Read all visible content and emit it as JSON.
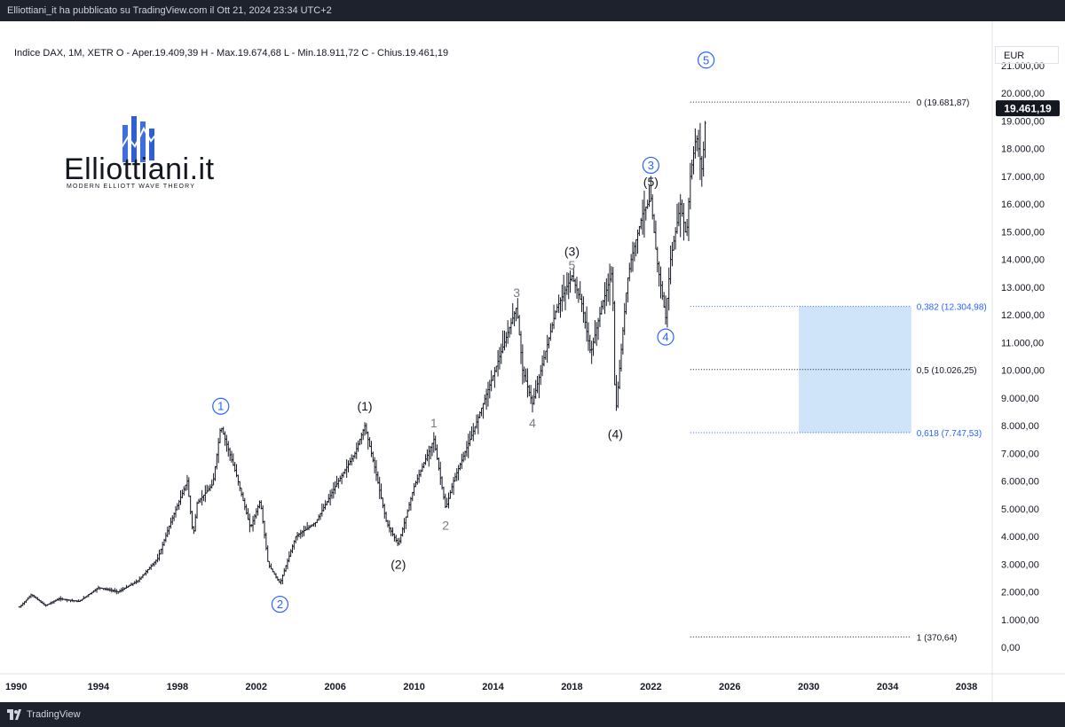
{
  "header": {
    "publisher_line": "Elliottiani_it ha pubblicato su TradingView.com il Ott 21, 2024 23:34 UTC+2"
  },
  "legend": {
    "text": "Indice DAX, 1M, XETR  O - Aper.19.409,39  H - Max.19.674,68  L - Min.18.911,72  C - Chius.19.461,19"
  },
  "price_axis": {
    "currency": "EUR",
    "last_price_label": "19.461,19"
  },
  "brand": {
    "name": "Elliottiani.it",
    "tagline": "MODERN ELLIOTT WAVE THEORY"
  },
  "footer": {
    "brand": "TradingView"
  },
  "colors": {
    "fib_zone": "#cfe3f9",
    "fib_line": "#2962ff",
    "circle_label": "#2962ff",
    "candle": "#131722",
    "last_price_bg": "#131722"
  },
  "chart_data": {
    "type": "ohlc",
    "instrument": "Indice DAX",
    "timeframe": "1M",
    "y_axis": {
      "min": -500,
      "max": 22500,
      "ticks": [
        0,
        1000,
        2000,
        3000,
        4000,
        5000,
        6000,
        7000,
        8000,
        9000,
        10000,
        11000,
        12000,
        13000,
        14000,
        15000,
        16000,
        17000,
        18000,
        19000,
        20000,
        21000
      ],
      "tick_labels": [
        "0,00",
        "1.000,00",
        "2.000,00",
        "3.000,00",
        "4.000,00",
        "5.000,00",
        "6.000,00",
        "7.000,00",
        "8.000,00",
        "9.000,00",
        "10.000,00",
        "11.000,00",
        "12.000,00",
        "13.000,00",
        "14.000,00",
        "15.000,00",
        "16.000,00",
        "17.000,00",
        "18.000,00",
        "19.000,00",
        "20.000,00",
        "21.000,00"
      ]
    },
    "x_axis": {
      "ticks": [
        1990,
        1994,
        1998,
        2002,
        2006,
        2010,
        2014,
        2018,
        2022,
        2026,
        2030,
        2034,
        2038
      ],
      "tick_labels": [
        "1990",
        "1994",
        "1998",
        "2002",
        "2006",
        "2010",
        "2014",
        "2018",
        "2022",
        "2026",
        "2030",
        "2034",
        "2038"
      ]
    },
    "price_path": [
      [
        1990.0,
        1450
      ],
      [
        1990.6,
        1900
      ],
      [
        1991.3,
        1500
      ],
      [
        1992.0,
        1750
      ],
      [
        1993.0,
        1650
      ],
      [
        1994.0,
        2150
      ],
      [
        1995.0,
        2000
      ],
      [
        1996.0,
        2400
      ],
      [
        1997.0,
        3200
      ],
      [
        1997.6,
        4400
      ],
      [
        1998.5,
        6000
      ],
      [
        1998.8,
        4000
      ],
      [
        1999.0,
        5200
      ],
      [
        1999.8,
        5900
      ],
      [
        2000.2,
        8000
      ],
      [
        2001.0,
        6200
      ],
      [
        2001.7,
        4300
      ],
      [
        2002.2,
        5300
      ],
      [
        2002.6,
        3000
      ],
      [
        2003.2,
        2300
      ],
      [
        2004.0,
        4000
      ],
      [
        2005.0,
        4500
      ],
      [
        2006.0,
        5800
      ],
      [
        2007.0,
        7000
      ],
      [
        2007.5,
        8000
      ],
      [
        2008.0,
        6500
      ],
      [
        2008.6,
        4500
      ],
      [
        2009.2,
        3700
      ],
      [
        2010.0,
        5800
      ],
      [
        2011.0,
        7500
      ],
      [
        2011.6,
        5000
      ],
      [
        2012.0,
        6000
      ],
      [
        2013.0,
        7800
      ],
      [
        2014.0,
        9800
      ],
      [
        2015.2,
        12300
      ],
      [
        2015.5,
        10000
      ],
      [
        2016.0,
        8800
      ],
      [
        2016.6,
        10500
      ],
      [
        2017.2,
        12200
      ],
      [
        2018.0,
        13400
      ],
      [
        2018.5,
        12400
      ],
      [
        2018.95,
        10600
      ],
      [
        2019.5,
        12300
      ],
      [
        2020.05,
        13600
      ],
      [
        2020.2,
        8300
      ],
      [
        2020.8,
        13200
      ],
      [
        2021.0,
        14000
      ],
      [
        2021.6,
        15700
      ],
      [
        2022.0,
        16200
      ],
      [
        2022.3,
        14000
      ],
      [
        2022.75,
        11900
      ],
      [
        2023.0,
        14000
      ],
      [
        2023.5,
        16000
      ],
      [
        2023.8,
        14800
      ],
      [
        2024.0,
        17000
      ],
      [
        2024.3,
        18500
      ],
      [
        2024.6,
        17200
      ],
      [
        2024.8,
        19500
      ]
    ],
    "wave_labels": [
      {
        "text": "1",
        "style": "circle",
        "x": 2000.2,
        "y": 8700
      },
      {
        "text": "2",
        "style": "circle",
        "x": 2003.2,
        "y": 1550
      },
      {
        "text": "3",
        "style": "circle",
        "x": 2022.0,
        "y": 17400
      },
      {
        "text": "4",
        "style": "circle",
        "x": 2022.75,
        "y": 11200
      },
      {
        "text": "5",
        "style": "circle",
        "x": 2024.8,
        "y": 21200
      },
      {
        "text": "(1)",
        "style": "paren",
        "x": 2007.5,
        "y": 8700
      },
      {
        "text": "(2)",
        "style": "paren",
        "x": 2009.2,
        "y": 3000
      },
      {
        "text": "(3)",
        "style": "paren",
        "x": 2018.0,
        "y": 14300
      },
      {
        "text": "(4)",
        "style": "paren",
        "x": 2020.2,
        "y": 7700
      },
      {
        "text": "(5)",
        "style": "paren",
        "x": 2022.0,
        "y": 16800
      },
      {
        "text": "1",
        "style": "minor",
        "x": 2011.0,
        "y": 8100
      },
      {
        "text": "2",
        "style": "minor",
        "x": 2011.6,
        "y": 4400
      },
      {
        "text": "3",
        "style": "minor",
        "x": 2015.2,
        "y": 12800
      },
      {
        "text": "4",
        "style": "minor",
        "x": 2016.0,
        "y": 8100
      },
      {
        "text": "5",
        "style": "minor",
        "x": 2018.0,
        "y": 13800
      }
    ],
    "fibonacci": {
      "x_start": 2024.0,
      "x_end": 2035.2,
      "zone": {
        "x_start": 2029.5,
        "x_end": 2035.2,
        "y_top": 12304.98,
        "y_bottom": 7747.53
      },
      "levels": [
        {
          "value": 19681.87,
          "label": "0 (19.681,87)",
          "color": "#131722"
        },
        {
          "value": 12304.98,
          "label": "0,382 (12.304,98)",
          "color": "#2962ff"
        },
        {
          "value": 10026.25,
          "label": "0,5 (10.026,25)",
          "color": "#131722"
        },
        {
          "value": 7747.53,
          "label": "0,618 (7.747,53)",
          "color": "#2962ff"
        },
        {
          "value": 370.64,
          "label": "1 (370,64)",
          "color": "#131722"
        }
      ]
    },
    "last_price": 19461.19
  }
}
